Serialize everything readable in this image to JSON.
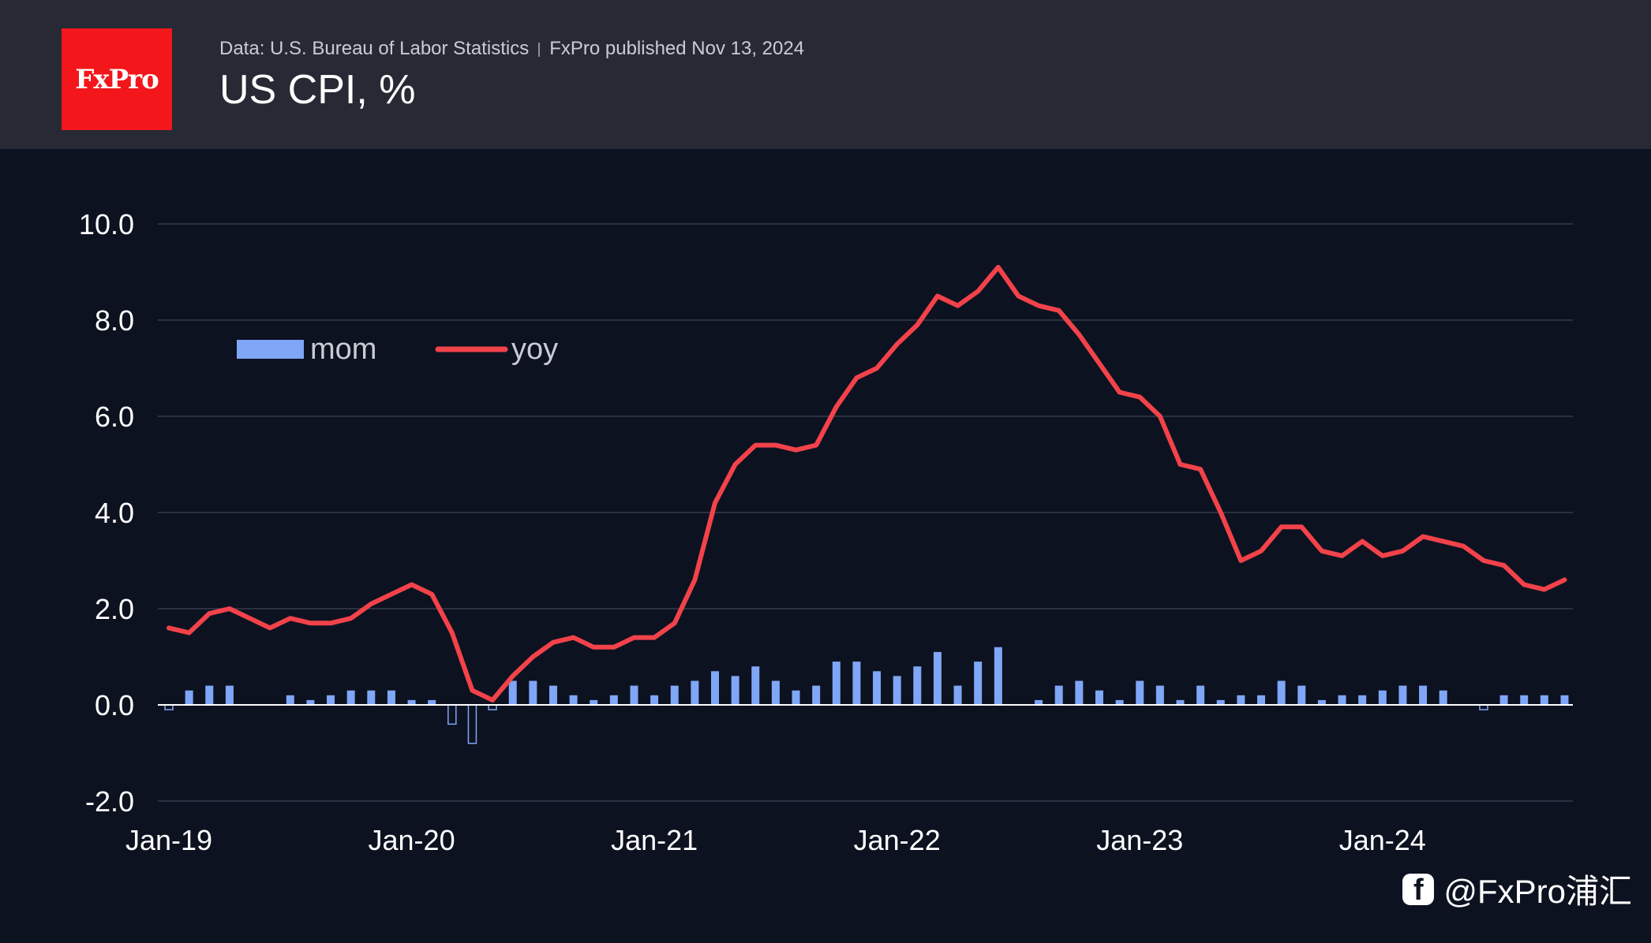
{
  "brand": {
    "logo_text": "FxPro",
    "color": "#f3161a"
  },
  "header": {
    "source": "Data: U.S. Bureau of Labor Statistics",
    "published": "FxPro published Nov 13, 2024",
    "title": "US CPI, %"
  },
  "watermark": {
    "icon": "facebook-icon",
    "text": "@FxPro浦汇"
  },
  "chart_data": {
    "type": "bar+line",
    "title": "US CPI, %",
    "x_start": "2019-01",
    "x_ticks": [
      "Jan-19",
      "Jan-20",
      "Jan-21",
      "Jan-22",
      "Jan-23",
      "Jan-24"
    ],
    "y_ticks": [
      "10.0",
      "8.0",
      "6.0",
      "4.0",
      "2.0",
      "0.0",
      "-2.0"
    ],
    "ylim": [
      -2,
      10
    ],
    "grid": true,
    "legend_placement": "top-left",
    "series": [
      {
        "name": "mom",
        "type": "bar",
        "color": "#7fa6f7",
        "values": [
          -0.1,
          0.3,
          0.4,
          0.4,
          0.0,
          0.0,
          0.2,
          0.1,
          0.2,
          0.3,
          0.3,
          0.3,
          0.1,
          0.1,
          -0.4,
          -0.8,
          -0.1,
          0.5,
          0.5,
          0.4,
          0.2,
          0.1,
          0.2,
          0.4,
          0.2,
          0.4,
          0.5,
          0.7,
          0.6,
          0.8,
          0.5,
          0.3,
          0.4,
          0.9,
          0.9,
          0.7,
          0.6,
          0.8,
          1.1,
          0.4,
          0.9,
          1.2,
          0.0,
          0.1,
          0.4,
          0.5,
          0.3,
          0.1,
          0.5,
          0.4,
          0.1,
          0.4,
          0.1,
          0.2,
          0.2,
          0.5,
          0.4,
          0.1,
          0.2,
          0.2,
          0.3,
          0.4,
          0.4,
          0.3,
          0.0,
          -0.1,
          0.2,
          0.2,
          0.2,
          0.2
        ]
      },
      {
        "name": "yoy",
        "type": "line",
        "color": "#f2424a",
        "values": [
          1.6,
          1.5,
          1.9,
          2.0,
          1.8,
          1.6,
          1.8,
          1.7,
          1.7,
          1.8,
          2.1,
          2.3,
          2.5,
          2.3,
          1.5,
          0.3,
          0.1,
          0.6,
          1.0,
          1.3,
          1.4,
          1.2,
          1.2,
          1.4,
          1.4,
          1.7,
          2.6,
          4.2,
          5.0,
          5.4,
          5.4,
          5.3,
          5.4,
          6.2,
          6.8,
          7.0,
          7.5,
          7.9,
          8.5,
          8.3,
          8.6,
          9.1,
          8.5,
          8.3,
          8.2,
          7.7,
          7.1,
          6.5,
          6.4,
          6.0,
          5.0,
          4.9,
          4.0,
          3.0,
          3.2,
          3.7,
          3.7,
          3.2,
          3.1,
          3.4,
          3.1,
          3.2,
          3.5,
          3.4,
          3.3,
          3.0,
          2.9,
          2.5,
          2.4,
          2.6
        ]
      }
    ]
  }
}
